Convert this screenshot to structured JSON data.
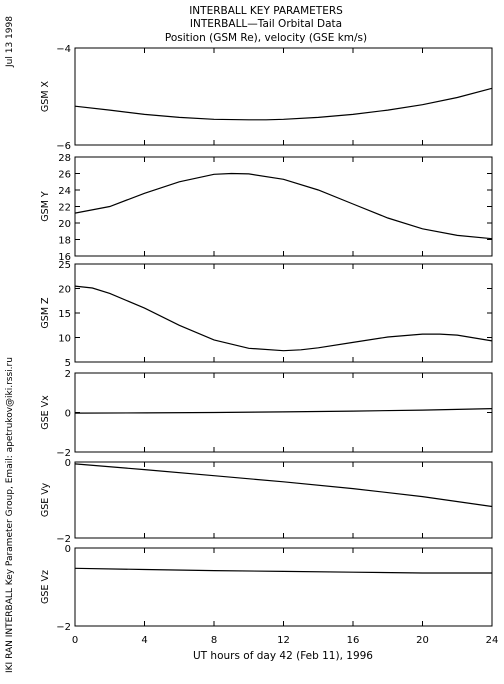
{
  "header": {
    "line1": "INTERBALL KEY PARAMETERS",
    "line2": "INTERBALL—Tail Orbital Data",
    "line3": "Position (GSM Re), velocity (GSE km/s)"
  },
  "side_date": "Jul 13 1998",
  "side_credit": "IKI RAN INTERBALL Key Parameter Group, Email: apetrukov@iki.rssi.ru",
  "chart_data": {
    "type": "line",
    "xlabel": "UT hours of day  42 (Feb 11), 1996",
    "x_ticks": [
      0,
      4,
      8,
      12,
      16,
      20,
      24
    ],
    "xlim": [
      0,
      24
    ],
    "panels": [
      {
        "ylabel": "GSM X",
        "ylim": [
          -6,
          -4
        ],
        "y_ticks": [
          -4,
          -6
        ],
        "x": [
          0,
          2,
          4,
          6,
          8,
          10,
          11,
          12,
          14,
          16,
          18,
          20,
          22,
          24
        ],
        "y": [
          -5.2,
          -5.28,
          -5.37,
          -5.43,
          -5.47,
          -5.48,
          -5.48,
          -5.47,
          -5.43,
          -5.37,
          -5.28,
          -5.17,
          -5.02,
          -4.83
        ]
      },
      {
        "ylabel": "GSM Y",
        "ylim": [
          16,
          28
        ],
        "y_ticks": [
          16,
          18,
          20,
          22,
          24,
          26,
          28
        ],
        "x": [
          0,
          2,
          4,
          6,
          8,
          9,
          10,
          12,
          14,
          16,
          18,
          20,
          22,
          24
        ],
        "y": [
          21.2,
          22.0,
          23.6,
          25.0,
          25.9,
          26.0,
          25.95,
          25.3,
          24.0,
          22.3,
          20.6,
          19.3,
          18.5,
          18.1
        ]
      },
      {
        "ylabel": "GSM Z",
        "ylim": [
          5,
          25
        ],
        "y_ticks": [
          5,
          10,
          15,
          20,
          25
        ],
        "x": [
          0,
          1,
          2,
          4,
          6,
          8,
          10,
          12,
          13,
          14,
          16,
          18,
          20,
          21,
          22,
          24
        ],
        "y": [
          20.5,
          20.1,
          19.0,
          16.0,
          12.5,
          9.5,
          7.8,
          7.3,
          7.5,
          7.9,
          9.0,
          10.1,
          10.7,
          10.7,
          10.5,
          9.3
        ]
      },
      {
        "ylabel": "GSE Vx",
        "ylim": [
          -2,
          2
        ],
        "y_ticks": [
          2,
          0,
          -2
        ],
        "x": [
          0,
          4,
          8,
          12,
          16,
          20,
          24
        ],
        "y": [
          -0.03,
          -0.02,
          0.0,
          0.03,
          0.07,
          0.12,
          0.2
        ]
      },
      {
        "ylabel": "GSE Vy",
        "ylim": [
          -2,
          0
        ],
        "y_ticks": [
          0,
          -2
        ],
        "x": [
          0,
          4,
          8,
          12,
          16,
          20,
          24
        ],
        "y": [
          -0.05,
          -0.2,
          -0.36,
          -0.52,
          -0.7,
          -0.91,
          -1.17
        ]
      },
      {
        "ylabel": "GSE Vz",
        "ylim": [
          -2,
          0
        ],
        "y_ticks": [
          0,
          -2
        ],
        "x": [
          0,
          4,
          8,
          12,
          16,
          20,
          24
        ],
        "y": [
          -0.52,
          -0.55,
          -0.58,
          -0.6,
          -0.62,
          -0.64,
          -0.64
        ]
      }
    ]
  }
}
